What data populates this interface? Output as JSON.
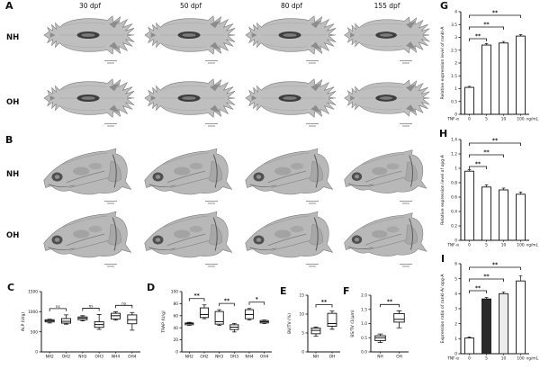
{
  "figure": {
    "panels": {
      "A": "A",
      "B": "B",
      "C": "C",
      "D": "D",
      "E": "E",
      "F": "F",
      "G": "G",
      "H": "H",
      "I": "I"
    },
    "timepoints": [
      "30 dpf",
      "50 dpf",
      "80 dpf",
      "155 dpf"
    ],
    "groups": [
      "NH",
      "OH"
    ],
    "image_type": "micro-CT skull reconstruction, grayscale"
  },
  "chart_data": [
    {
      "id": "C",
      "type": "box",
      "title": "",
      "ylabel": "ALP (U/g)",
      "ylim": [
        0,
        1500
      ],
      "yticks": [
        "0",
        "500",
        "1000",
        "1500"
      ],
      "categories": [
        "NH2",
        "OH2",
        "NH3",
        "OH3",
        "NH4",
        "OH4"
      ],
      "boxes": [
        [
          720,
          745,
          775,
          800,
          815
        ],
        [
          690,
          715,
          760,
          830,
          920
        ],
        [
          770,
          800,
          840,
          870,
          900
        ],
        [
          560,
          610,
          680,
          750,
          930
        ],
        [
          790,
          820,
          900,
          960,
          1000
        ],
        [
          540,
          700,
          800,
          920,
          980
        ]
      ],
      "significance": [
        {
          "a": 0,
          "b": 1,
          "label": "ns"
        },
        {
          "a": 2,
          "b": 3,
          "label": "ns"
        },
        {
          "a": 4,
          "b": 5,
          "label": "ns"
        }
      ]
    },
    {
      "id": "D",
      "type": "box",
      "title": "",
      "ylabel": "TRAP (U/g)",
      "ylim": [
        0,
        100
      ],
      "yticks": [
        "0",
        "20",
        "40",
        "60",
        "80",
        "100"
      ],
      "categories": [
        "NH2",
        "OH2",
        "NH3",
        "OH3",
        "NH4",
        "OH4"
      ],
      "boxes": [
        [
          44,
          45,
          47,
          48,
          49
        ],
        [
          55,
          57,
          62,
          73,
          78
        ],
        [
          44,
          46,
          50,
          67,
          70
        ],
        [
          33,
          37,
          41,
          45,
          47
        ],
        [
          53,
          55,
          62,
          70,
          72
        ],
        [
          47,
          48,
          50,
          52,
          53
        ]
      ],
      "significance": [
        {
          "a": 0,
          "b": 1,
          "label": "**"
        },
        {
          "a": 2,
          "b": 3,
          "label": "**"
        },
        {
          "a": 4,
          "b": 5,
          "label": "*"
        }
      ]
    },
    {
      "id": "E",
      "type": "box",
      "title": "",
      "ylabel": "BV/TV (%)",
      "ylim": [
        0,
        15
      ],
      "yticks": [
        "0",
        "5",
        "10",
        "15"
      ],
      "categories": [
        "NH",
        "OH"
      ],
      "boxes": [
        [
          4.2,
          4.8,
          5.7,
          6.3,
          6.6
        ],
        [
          6.0,
          6.8,
          7.5,
          10.2,
          10.8
        ]
      ],
      "significance": [
        {
          "a": 0,
          "b": 1,
          "label": "**"
        }
      ]
    },
    {
      "id": "F",
      "type": "box",
      "title": "",
      "ylabel": "BS/TV (1/μm)",
      "ylim": [
        0,
        2
      ],
      "yticks": [
        "0.0",
        "0.5",
        "1.0",
        "1.5",
        "2.0"
      ],
      "categories": [
        "NH",
        "OH"
      ],
      "boxes": [
        [
          0.33,
          0.4,
          0.5,
          0.57,
          0.63
        ],
        [
          0.85,
          1.05,
          1.15,
          1.35,
          1.45
        ]
      ],
      "significance": [
        {
          "a": 0,
          "b": 1,
          "label": "**"
        }
      ]
    },
    {
      "id": "G",
      "type": "bar",
      "title": "",
      "ylabel": "Relative expression level of rankl-A",
      "ylim": [
        0,
        4
      ],
      "yticks": [
        "0",
        "0.5",
        "1",
        "1.5",
        "2",
        "2.5",
        "3",
        "3.5",
        "4"
      ],
      "x_prefix": "TNF-α",
      "x_unit": "ng/mL",
      "categories": [
        "0",
        "5",
        "10",
        "100"
      ],
      "values": [
        1.05,
        2.7,
        2.78,
        3.05
      ],
      "errors": [
        0.04,
        0.06,
        0.06,
        0.06
      ],
      "bar_fill": "#ffffff",
      "significance": [
        {
          "a": 0,
          "b": 1,
          "label": "**"
        },
        {
          "a": 0,
          "b": 2,
          "label": "**"
        },
        {
          "a": 0,
          "b": 3,
          "label": "**"
        }
      ]
    },
    {
      "id": "H",
      "type": "bar",
      "title": "",
      "ylabel": "Relative expression level of opg-A",
      "ylim": [
        0,
        1.4
      ],
      "yticks": [
        "0",
        "0.2",
        "0.4",
        "0.6",
        "0.8",
        "1",
        "1.2",
        "1.4"
      ],
      "x_prefix": "TNF-α",
      "x_unit": "ng/mL",
      "categories": [
        "0",
        "5",
        "10",
        "100"
      ],
      "values": [
        0.96,
        0.74,
        0.7,
        0.64
      ],
      "errors": [
        0.02,
        0.03,
        0.025,
        0.03
      ],
      "bar_fill": "#ffffff",
      "significance": [
        {
          "a": 0,
          "b": 1,
          "label": "**"
        },
        {
          "a": 0,
          "b": 2,
          "label": "**"
        },
        {
          "a": 0,
          "b": 3,
          "label": "**"
        }
      ]
    },
    {
      "id": "I",
      "type": "bar",
      "title": "",
      "ylabel": "Expression ratio of rankl-A/ opg-A",
      "ylim": [
        0,
        6
      ],
      "yticks": [
        "0",
        "1",
        "2",
        "3",
        "4",
        "5",
        "6"
      ],
      "x_prefix": "TNF-α",
      "x_unit": "ng/mL",
      "categories": [
        "0",
        "5",
        "10",
        "100"
      ],
      "values": [
        1.05,
        3.65,
        4.0,
        4.85
      ],
      "errors": [
        0.06,
        0.1,
        0.12,
        0.35
      ],
      "fills": [
        "#ffffff",
        "#2b2b2b",
        "#ececec",
        "#ffffff"
      ],
      "significance": [
        {
          "a": 0,
          "b": 1,
          "label": "**"
        },
        {
          "a": 0,
          "b": 2,
          "label": "**"
        },
        {
          "a": 0,
          "b": 3,
          "label": "**"
        }
      ]
    }
  ]
}
